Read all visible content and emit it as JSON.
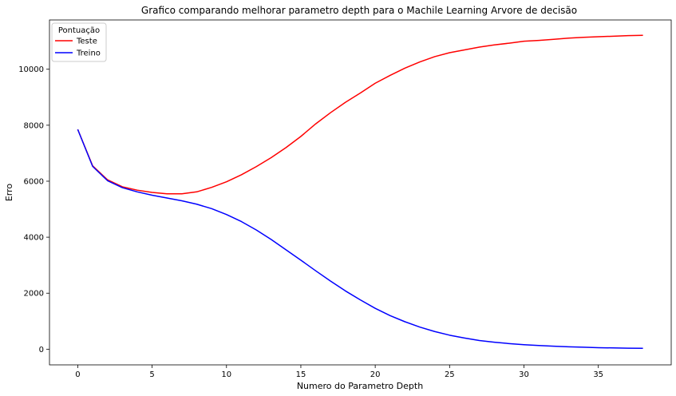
{
  "chart_data": {
    "type": "line",
    "title": "Grafico comparando melhorar parametro depth para o Machile Learning Arvore de decisão",
    "xlabel": "Numero do Parametro Depth",
    "ylabel": "Erro",
    "xlim": [
      -1.9,
      39.9
    ],
    "ylim": [
      -560,
      11760
    ],
    "xticks": [
      0,
      5,
      10,
      15,
      20,
      25,
      30,
      35
    ],
    "yticks": [
      0,
      2000,
      4000,
      6000,
      8000,
      10000
    ],
    "grid": false,
    "legend": {
      "title": "Pontuação",
      "position": "top-left"
    },
    "x": [
      0,
      1,
      2,
      3,
      4,
      5,
      6,
      7,
      8,
      9,
      10,
      11,
      12,
      13,
      14,
      15,
      16,
      17,
      18,
      19,
      20,
      21,
      22,
      23,
      24,
      25,
      26,
      27,
      28,
      29,
      30,
      31,
      32,
      33,
      34,
      35,
      36,
      37,
      38
    ],
    "series": [
      {
        "name": "Teste",
        "color": "#ff0000",
        "values": [
          7850,
          6550,
          6050,
          5800,
          5680,
          5600,
          5550,
          5550,
          5620,
          5780,
          5980,
          6230,
          6520,
          6840,
          7200,
          7600,
          8050,
          8450,
          8820,
          9150,
          9500,
          9780,
          10040,
          10260,
          10450,
          10590,
          10690,
          10790,
          10870,
          10930,
          11000,
          11030,
          11070,
          11110,
          11140,
          11160,
          11180,
          11200,
          11210
        ]
      },
      {
        "name": "Treino",
        "color": "#0000ff",
        "values": [
          7850,
          6530,
          6020,
          5770,
          5620,
          5500,
          5400,
          5300,
          5180,
          5020,
          4810,
          4560,
          4260,
          3920,
          3550,
          3180,
          2800,
          2430,
          2080,
          1760,
          1460,
          1200,
          980,
          790,
          630,
          500,
          400,
          310,
          250,
          200,
          160,
          130,
          105,
          85,
          70,
          55,
          45,
          35,
          30
        ]
      }
    ]
  }
}
